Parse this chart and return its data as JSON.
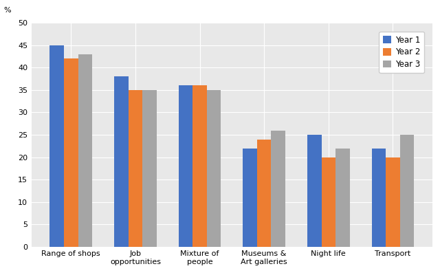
{
  "categories": [
    "Range of shops",
    "Job\nopportunities",
    "Mixture of\npeople",
    "Museums &\nArt galleries",
    "Night life",
    "Transport"
  ],
  "year1": [
    45,
    38,
    36,
    22,
    25,
    22
  ],
  "year2": [
    42,
    35,
    36,
    24,
    20,
    20
  ],
  "year3": [
    43,
    35,
    35,
    26,
    22,
    25
  ],
  "colors": {
    "year1": "#4472c4",
    "year2": "#ed7d31",
    "year3": "#a5a5a5"
  },
  "legend_labels": [
    "Year 1",
    "Year 2",
    "Year 3"
  ],
  "ylabel": "%",
  "ylim": [
    0,
    50
  ],
  "yticks": [
    0,
    5,
    10,
    15,
    20,
    25,
    30,
    35,
    40,
    45,
    50
  ],
  "plot_background": "#e8e8e8",
  "bar_width": 0.22,
  "grid_color": "#ffffff",
  "tick_fontsize": 8,
  "legend_fontsize": 8.5
}
